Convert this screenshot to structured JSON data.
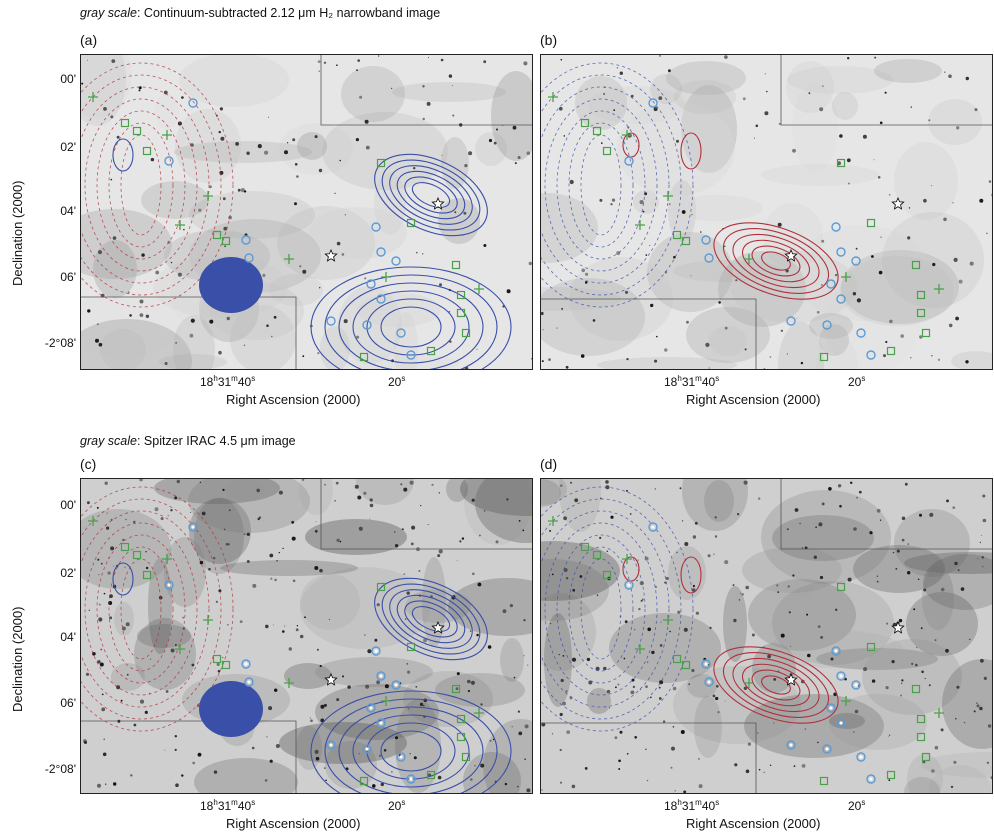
{
  "rows": [
    {
      "title_italic": "gray scale",
      "title_rest": ": Continuum-subtracted 2.12 μm H₂ narrowband image"
    },
    {
      "title_italic": "gray scale",
      "title_rest": ": Spitzer IRAC 4.5 μm image"
    }
  ],
  "panels": [
    {
      "label": "(a)",
      "style": "h2",
      "contour_color": "#3a4fa8",
      "dash_color": "#b0303a"
    },
    {
      "label": "(b)",
      "style": "h2",
      "contour_color": "#b0303a",
      "dash_color": "#3a4fa8"
    },
    {
      "label": "(c)",
      "style": "irac",
      "contour_color": "#3a4fa8",
      "dash_color": "#b0303a"
    },
    {
      "label": "(d)",
      "style": "irac",
      "contour_color": "#b0303a",
      "dash_color": "#3a4fa8"
    }
  ],
  "axes": {
    "ylabel": "Declination (2000)",
    "xlabel": "Right Ascension (2000)",
    "yticks": [
      "00'",
      "02'",
      "04'",
      "06'",
      "-2°08'"
    ],
    "xtick_main": "18h31m40s",
    "xtick_main_parts": {
      "a": "18",
      "b": "h",
      "c": "31",
      "d": "m",
      "e": "40",
      "f": "s"
    },
    "xtick_second": "20s",
    "xtick_second_parts": {
      "a": "20",
      "b": "s"
    }
  },
  "colors": {
    "circle": "#5b9bd5",
    "square": "#4aa04a",
    "plus": "#4aa04a",
    "star": "#ffffff"
  }
}
